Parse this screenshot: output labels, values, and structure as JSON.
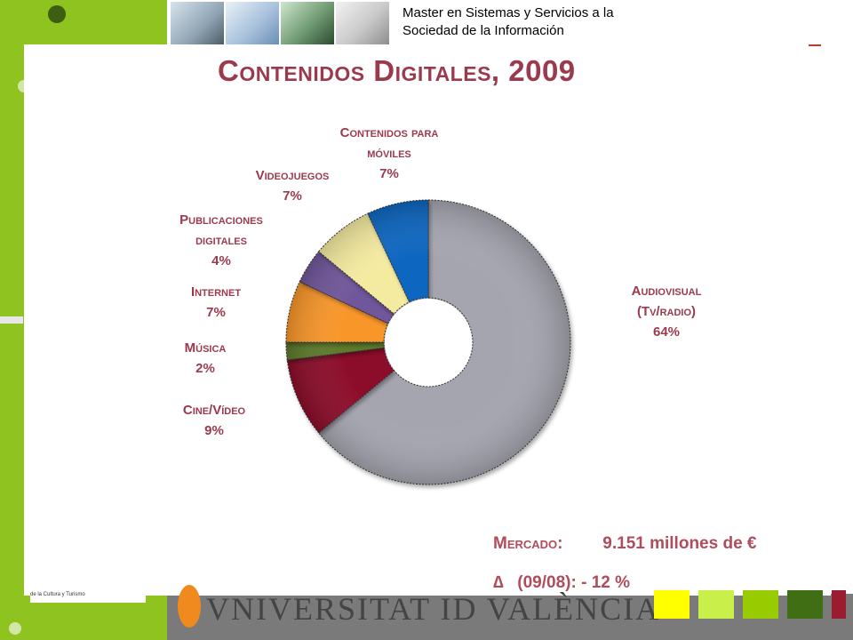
{
  "header": {
    "program_line1": "Master en Sistemas y Servicios a la",
    "program_line2": "Sociedad de la Información"
  },
  "slide": {
    "title": "Contenidos Digitales, 2009"
  },
  "chart_data": {
    "type": "pie",
    "variant": "donut",
    "title": "Contenidos Digitales, 2009",
    "slices": [
      {
        "label": [
          "Audiovisual",
          "(Tv/radio)"
        ],
        "value": 64,
        "display": "64%",
        "color": "#a5a5b0"
      },
      {
        "label": [
          "Cine/Vídeo"
        ],
        "value": 9,
        "display": "9%",
        "color": "#8c0f2b"
      },
      {
        "label": [
          "Música"
        ],
        "value": 2,
        "display": "2%",
        "color": "#5c7a2a"
      },
      {
        "label": [
          "Internet"
        ],
        "value": 7,
        "display": "7%",
        "color": "#f8962b"
      },
      {
        "label": [
          "Publicaciones",
          "digitales"
        ],
        "value": 4,
        "display": "4%",
        "color": "#6f579a"
      },
      {
        "label": [
          "Videojuegos"
        ],
        "value": 7,
        "display": "7%",
        "color": "#f5eba0"
      },
      {
        "label": [
          "Contenidos para",
          "móviles"
        ],
        "value": 7,
        "display": "7%",
        "color": "#0a66c0"
      }
    ],
    "label_color": "#9b3a4c"
  },
  "market": {
    "label": "Mercado:",
    "value": "9.151 millones de €",
    "delta_symbol": "∆",
    "delta_label": "(09/08):",
    "delta_value": "- 12 %"
  },
  "footer": {
    "sponsor_text": "de la Cultura y Turismo",
    "university_logo_text": "VNIVERSITAT ID VALÈNCIA"
  },
  "colors": {
    "accent_green": "#8fc31f",
    "title_color": "#9b3a4c"
  }
}
